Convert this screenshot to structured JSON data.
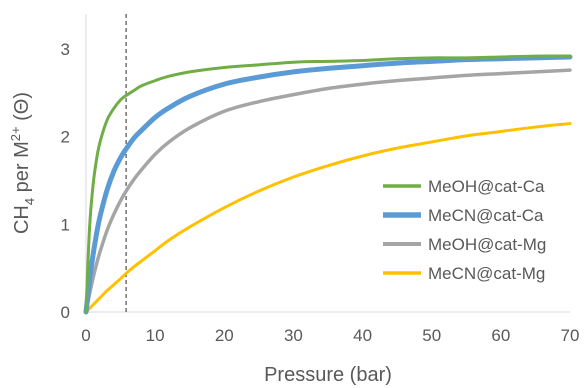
{
  "chart_data": {
    "type": "line",
    "xlabel": "Pressure (bar)",
    "ylabel": {
      "base": "CH",
      "sub": "4",
      "mid": " per M",
      "sup": "2+",
      "end": " (Θ)"
    },
    "xlim": [
      0,
      70
    ],
    "ylim": [
      0,
      3.4
    ],
    "x_ticks": [
      0,
      10,
      20,
      30,
      40,
      50,
      60,
      70
    ],
    "y_ticks": [
      0,
      1,
      2,
      3
    ],
    "grid": false,
    "legend_position": "right",
    "reference_line": {
      "x": 5.8,
      "style": "dashed"
    },
    "x": [
      0,
      0.5,
      1,
      1.5,
      2,
      3,
      4,
      5,
      5.8,
      7,
      8,
      10,
      12,
      15,
      20,
      25,
      30,
      35,
      40,
      45,
      50,
      55,
      60,
      65,
      70
    ],
    "series": [
      {
        "name": "MeOH@cat-Ca",
        "color": "#70ad47",
        "stroke": 3,
        "values": [
          0,
          0.94,
          1.43,
          1.73,
          1.93,
          2.18,
          2.32,
          2.42,
          2.47,
          2.53,
          2.58,
          2.64,
          2.69,
          2.74,
          2.79,
          2.82,
          2.85,
          2.86,
          2.87,
          2.89,
          2.9,
          2.9,
          2.91,
          2.92,
          2.92
        ]
      },
      {
        "name": "MeCN@cat-Ca",
        "color": "#5b9bd5",
        "stroke": 5,
        "values": [
          0,
          0.35,
          0.64,
          0.88,
          1.08,
          1.38,
          1.6,
          1.76,
          1.86,
          1.99,
          2.07,
          2.22,
          2.33,
          2.46,
          2.6,
          2.68,
          2.74,
          2.78,
          2.81,
          2.84,
          2.86,
          2.88,
          2.89,
          2.9,
          2.91
        ]
      },
      {
        "name": "MeOH@cat-Mg",
        "color": "#a5a5a5",
        "stroke": 3.5,
        "values": [
          0,
          0.2,
          0.38,
          0.54,
          0.68,
          0.92,
          1.11,
          1.27,
          1.38,
          1.52,
          1.62,
          1.8,
          1.94,
          2.1,
          2.29,
          2.4,
          2.48,
          2.55,
          2.6,
          2.64,
          2.67,
          2.7,
          2.72,
          2.74,
          2.76
        ]
      },
      {
        "name": "MeCN@cat-Mg",
        "color": "#ffc000",
        "stroke": 3,
        "values": [
          0,
          0.04,
          0.08,
          0.12,
          0.16,
          0.24,
          0.31,
          0.38,
          0.44,
          0.52,
          0.58,
          0.7,
          0.82,
          0.97,
          1.19,
          1.38,
          1.54,
          1.67,
          1.78,
          1.87,
          1.94,
          2.01,
          2.06,
          2.11,
          2.15
        ]
      }
    ]
  }
}
